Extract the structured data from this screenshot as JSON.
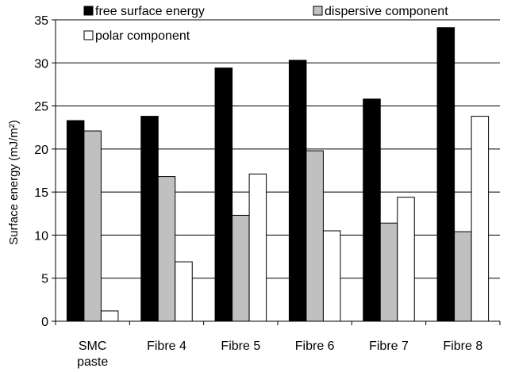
{
  "chart_data": {
    "type": "bar",
    "title": "",
    "xlabel": "",
    "ylabel": "Surface energy (mJ/m²)",
    "ylim": [
      0,
      35
    ],
    "yticks": [
      0,
      5,
      10,
      15,
      20,
      25,
      30,
      35
    ],
    "grid": "horizontal",
    "legend_placement": "top",
    "categories": [
      [
        "SMC",
        "paste"
      ],
      [
        "Fibre 4"
      ],
      [
        "Fibre 5"
      ],
      [
        "Fibre 6"
      ],
      [
        "Fibre 7"
      ],
      [
        "Fibre 8"
      ]
    ],
    "series": [
      {
        "name": "free surface energy",
        "color": "#000000",
        "values": [
          23.3,
          23.8,
          29.4,
          30.3,
          25.8,
          34.1
        ]
      },
      {
        "name": "dispersive component",
        "color": "#c0c0c0",
        "values": [
          22.1,
          16.8,
          12.3,
          19.8,
          11.4,
          10.4
        ]
      },
      {
        "name": "polar component",
        "color": "#ffffff",
        "values": [
          1.2,
          6.9,
          17.1,
          10.5,
          14.4,
          23.8
        ]
      }
    ]
  }
}
